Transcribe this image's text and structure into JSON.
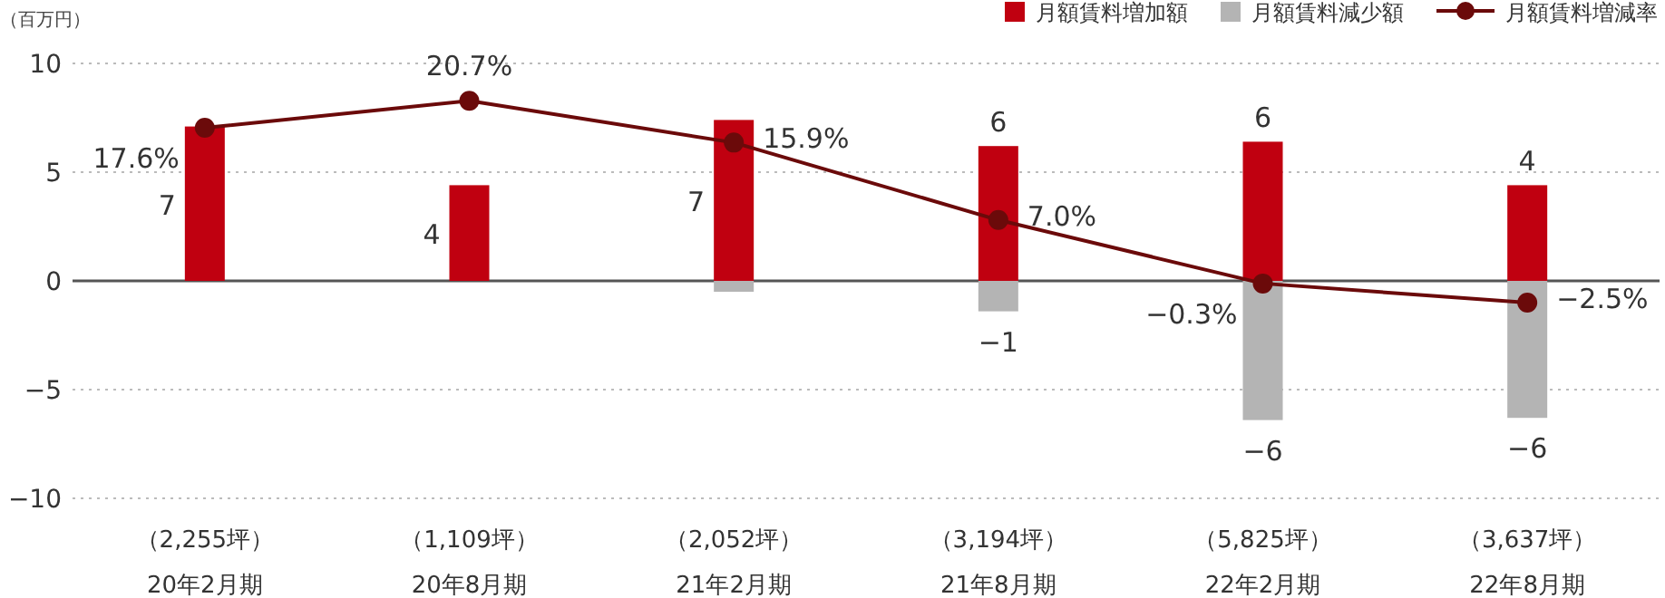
{
  "chart_data": {
    "type": "bar",
    "ylabel": "（百万円）",
    "categories": [
      "（2,255坪）\n20年2月期",
      "（1,109坪）\n20年8月期",
      "（2,052坪）\n21年2月期",
      "（3,194坪）\n21年8月期",
      "（5,825坪）\n22年2月期",
      "（3,637坪）\n22年8月期"
    ],
    "stacked": true,
    "legend": "top right",
    "grid": "y",
    "ylim": [
      -10,
      10
    ],
    "yticks": [
      -10,
      -5,
      0,
      5,
      10
    ],
    "y2lim": [
      -25,
      25
    ],
    "series": [
      {
        "name": "月額賃料増加額",
        "color": "#c00010",
        "values": [
          7.1,
          4.4,
          7.4,
          6.2,
          6.4,
          4.4
        ],
        "value_labels": [
          "7",
          "4",
          "7",
          "6",
          "6",
          "4"
        ]
      },
      {
        "name": "月額賃料減少額",
        "color": "#b4b4b4",
        "values": [
          null,
          null,
          -0.5,
          -1.4,
          -6.4,
          -6.3
        ],
        "value_labels": [
          null,
          null,
          null,
          "−1",
          "−6",
          "−6"
        ]
      },
      {
        "name": "月額賃料増減率",
        "type": "line",
        "axis": "y2",
        "marker": "circle",
        "line_style": "solid",
        "color": "#6b0a0a",
        "values": [
          17.6,
          20.7,
          15.9,
          7.0,
          -0.3,
          -2.5
        ],
        "value_labels": [
          "17.6%",
          "20.7%",
          "15.9%",
          "7.0%",
          "−0.3%",
          "−2.5%"
        ]
      }
    ]
  }
}
